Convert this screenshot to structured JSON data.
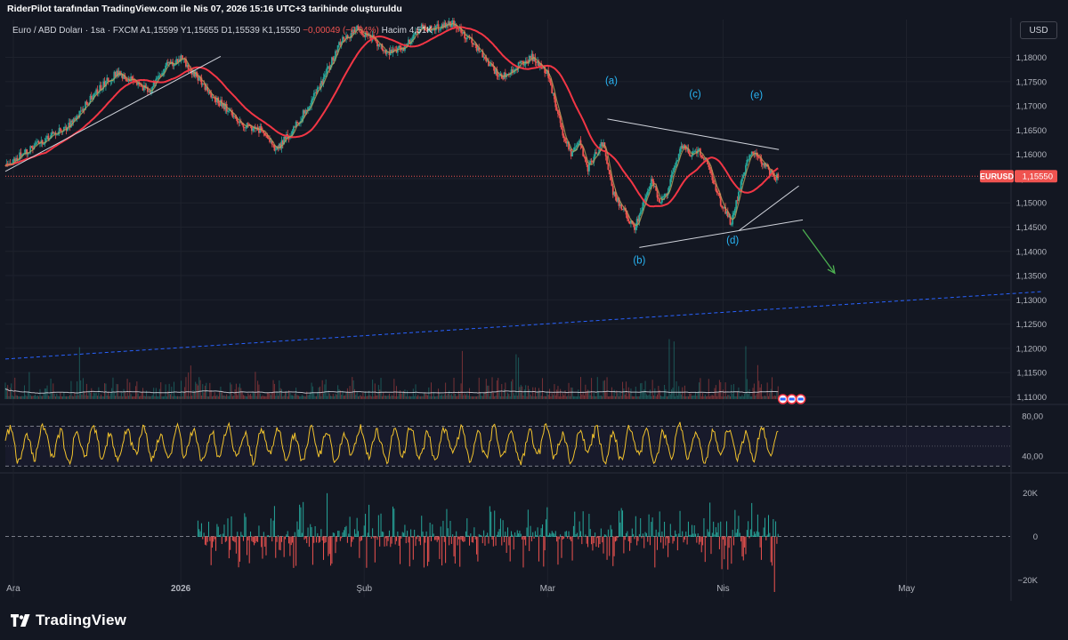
{
  "header": {
    "caption": "RiderPilot tarafından TradingView.com ile Nis 07, 2026 15:16 UTC+3 tarihinde oluşturuldu"
  },
  "legend": {
    "symbol": "Euro / ABD Doları · 1sa · FXCM",
    "open": "A1,15599",
    "high": "Y1,15655",
    "low": "D1,15539",
    "close": "K1,15550",
    "change": "−0,00049 (−0,04%)",
    "volume": "Hacim 4,51K"
  },
  "currency_button": "USD",
  "price_tag": {
    "symbol": "EURUSD",
    "value": "1,15550"
  },
  "branding": {
    "logo_text": "TradingView"
  },
  "colors": {
    "background": "#131722",
    "grid": "#1e222d",
    "up": "#26a69a",
    "down": "#ef5350",
    "ma_slow": "#f23645",
    "ma_fast": "#b8a05a",
    "rsi": "#f2c32d",
    "channel": "#2962ff",
    "projection_arrow": "#4caf50"
  },
  "chart_data": [
    {
      "type": "candlestick",
      "panel": "price",
      "y_unit": "EUR/USD",
      "ylim": [
        1.1088,
        1.1878
      ],
      "y_ticks": [
        "1,18000",
        "1,17500",
        "1,17000",
        "1,16500",
        "1,16000",
        "1,15500",
        "1,15000",
        "1,14500",
        "1,14000",
        "1,13500",
        "1,13000",
        "1,12500",
        "1,12000",
        "1,11500",
        "1,11000"
      ],
      "x_ticks": [
        "Ara",
        "2026",
        "Şub",
        "Mar",
        "Nis",
        "May"
      ],
      "x_tick_pos": [
        1,
        22,
        45,
        68,
        90,
        113
      ],
      "x_domain": [
        0,
        126
      ],
      "last_price": 1.1555,
      "waypoints": [
        [
          0,
          1.158
        ],
        [
          2,
          1.16
        ],
        [
          4,
          1.162
        ],
        [
          6,
          1.164
        ],
        [
          8,
          1.166
        ],
        [
          10,
          1.17
        ],
        [
          12,
          1.174
        ],
        [
          14,
          1.177
        ],
        [
          16,
          1.175
        ],
        [
          18,
          1.173
        ],
        [
          20,
          1.178
        ],
        [
          22,
          1.18
        ],
        [
          24,
          1.176
        ],
        [
          26,
          1.172
        ],
        [
          28,
          1.169
        ],
        [
          30,
          1.166
        ],
        [
          32,
          1.165
        ],
        [
          34,
          1.161
        ],
        [
          36,
          1.165
        ],
        [
          38,
          1.17
        ],
        [
          40,
          1.176
        ],
        [
          42,
          1.183
        ],
        [
          44,
          1.186
        ],
        [
          46,
          1.184
        ],
        [
          48,
          1.181
        ],
        [
          50,
          1.182
        ],
        [
          52,
          1.186
        ],
        [
          54,
          1.186
        ],
        [
          56,
          1.187
        ],
        [
          58,
          1.184
        ],
        [
          60,
          1.18
        ],
        [
          62,
          1.176
        ],
        [
          64,
          1.178
        ],
        [
          66,
          1.18
        ],
        [
          68,
          1.177
        ],
        [
          69,
          1.17
        ],
        [
          70,
          1.164
        ],
        [
          71,
          1.16
        ],
        [
          72,
          1.163
        ],
        [
          73,
          1.157
        ],
        [
          74,
          1.16
        ],
        [
          75,
          1.163
        ],
        [
          76,
          1.153
        ],
        [
          78,
          1.147
        ],
        [
          79,
          1.145
        ],
        [
          80,
          1.15
        ],
        [
          81,
          1.155
        ],
        [
          82,
          1.15
        ],
        [
          83,
          1.152
        ],
        [
          84,
          1.158
        ],
        [
          85,
          1.162
        ],
        [
          86,
          1.16
        ],
        [
          87,
          1.161
        ],
        [
          88,
          1.158
        ],
        [
          89,
          1.153
        ],
        [
          90,
          1.149
        ],
        [
          91,
          1.146
        ],
        [
          92,
          1.152
        ],
        [
          93,
          1.159
        ],
        [
          94,
          1.161
        ],
        [
          95,
          1.158
        ],
        [
          96,
          1.156
        ],
        [
          97,
          1.155
        ]
      ],
      "moving_averages": [
        {
          "name": "",
          "period": 100,
          "color": "#f23645"
        },
        {
          "name": "",
          "period": 14,
          "color": "#b8a05a"
        }
      ],
      "wave_labels": [
        {
          "text": "(a)",
          "x": 76,
          "y": 1.1745
        },
        {
          "text": "(b)",
          "x": 79.5,
          "y": 1.1375
        },
        {
          "text": "(c)",
          "x": 86.5,
          "y": 1.1718
        },
        {
          "text": "(d)",
          "x": 91.2,
          "y": 1.1416
        },
        {
          "text": "(e)",
          "x": 94.2,
          "y": 1.1716
        }
      ],
      "trendlines": [
        {
          "from": [
            0,
            1.1565
          ],
          "to": [
            27,
            1.1802
          ],
          "style": "solid"
        },
        {
          "from": [
            75.5,
            1.1673
          ],
          "to": [
            97,
            1.161
          ],
          "style": "solid"
        },
        {
          "from": [
            79.5,
            1.1408
          ],
          "to": [
            100,
            1.1465
          ],
          "style": "solid"
        },
        {
          "from": [
            92,
            1.1443
          ],
          "to": [
            99.5,
            1.1535
          ],
          "style": "solid"
        },
        {
          "from": [
            0,
            1.1178
          ],
          "to": [
            130,
            1.1317
          ],
          "style": "dashed"
        }
      ],
      "projection_arrow": {
        "from": [
          100,
          1.1445
        ],
        "to": [
          104,
          1.1355
        ]
      },
      "volume_note": "volume histogram overlaid at bottom of price panel"
    },
    {
      "type": "line",
      "panel": "oscillator",
      "series": [
        {
          "name": "",
          "color": "#f2c32d"
        }
      ],
      "ylim": [
        25,
        90
      ],
      "y_ticks": [
        "80,00",
        "40,00"
      ],
      "bands": [
        70,
        30
      ],
      "midline": 50
    },
    {
      "type": "bar",
      "panel": "histogram",
      "ylim": [
        -28000,
        28000
      ],
      "y_ticks": [
        "20K",
        "0",
        "−20K"
      ],
      "x_start": 24
    }
  ]
}
